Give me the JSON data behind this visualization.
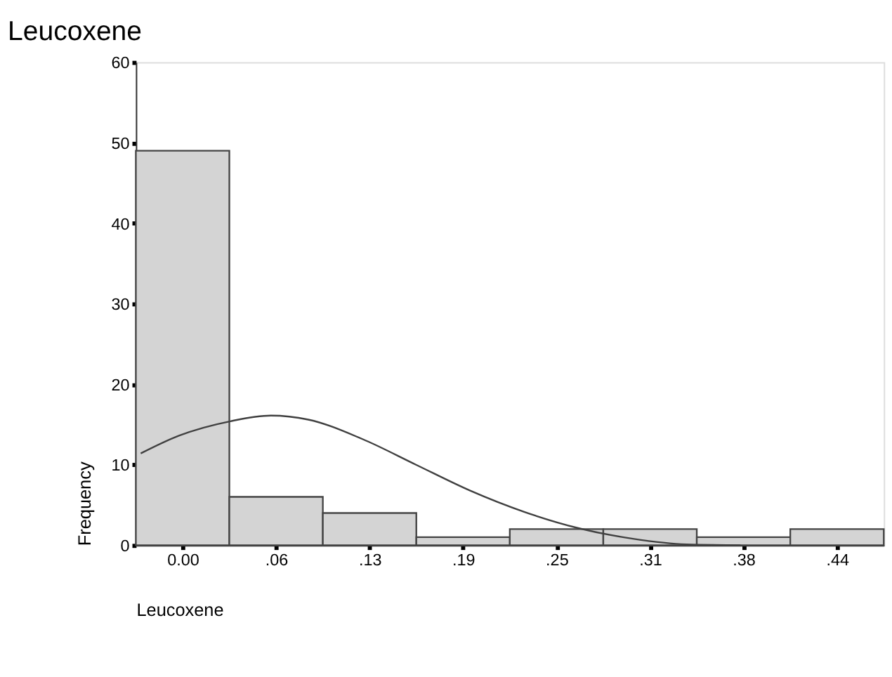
{
  "chart_data": {
    "type": "histogram",
    "title": "Leucoxene",
    "xlabel": "Leucoxene",
    "ylabel": "Frequency",
    "bins": [
      -0.03125,
      0.03125,
      0.09375,
      0.15625,
      0.21875,
      0.28125,
      0.34375,
      0.40625,
      0.46875
    ],
    "values": [
      49,
      6,
      4,
      1,
      2,
      2,
      1,
      2
    ],
    "color": "#d4d4d4",
    "xlim": [
      -0.03125,
      0.46875
    ],
    "xticks": [
      {
        "value": 0,
        "label": "0.00"
      },
      {
        "value": 0.0625,
        "label": ".06"
      },
      {
        "value": 0.125,
        "label": ".13"
      },
      {
        "value": 0.1875,
        "label": ".19"
      },
      {
        "value": 0.25,
        "label": ".25"
      },
      {
        "value": 0.3125,
        "label": ".31"
      },
      {
        "value": 0.375,
        "label": ".38"
      },
      {
        "value": 0.4375,
        "label": ".44"
      }
    ],
    "ylim": [
      0,
      60
    ],
    "yticks": [
      0,
      10,
      20,
      30,
      40,
      50,
      60
    ],
    "grid": false,
    "series": [
      {
        "type": "line",
        "color": "#404040",
        "x": [
          -0.028,
          -0.0025,
          0.032,
          0.059,
          0.084,
          0.12,
          0.156,
          0.192,
          0.229,
          0.265,
          0.301,
          0.337,
          0.373
        ],
        "values": [
          11.4,
          13.6,
          15.4,
          16.1,
          15.6,
          13.2,
          10.0,
          6.8,
          4.1,
          2.1,
          0.8,
          0.1,
          0
        ]
      }
    ]
  }
}
